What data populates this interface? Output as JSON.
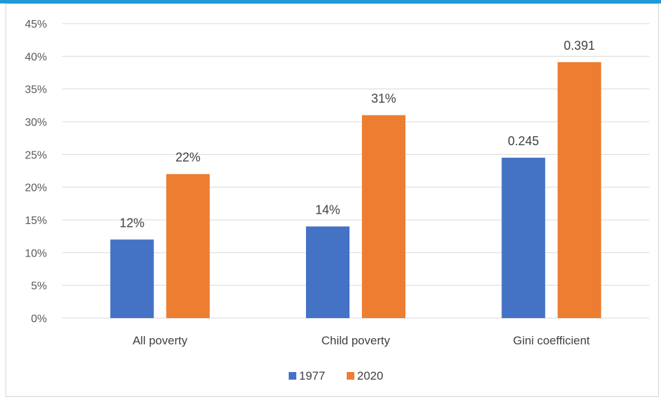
{
  "chart_data": {
    "type": "bar",
    "title": "",
    "xlabel": "",
    "ylabel": "",
    "categories": [
      "All poverty",
      "Child poverty",
      "Gini coefficient"
    ],
    "series": [
      {
        "name": "1977",
        "values": [
          0.12,
          0.14,
          0.245
        ],
        "labels": [
          "12%",
          "14%",
          "0.245"
        ],
        "color": "#4472c4"
      },
      {
        "name": "2020",
        "values": [
          0.22,
          0.31,
          0.391
        ],
        "labels": [
          "22%",
          "31%",
          "0.391"
        ],
        "color": "#ed7d31"
      }
    ],
    "ylim": [
      0,
      0.45
    ],
    "y_ticks": [
      0,
      0.05,
      0.1,
      0.15,
      0.2,
      0.25,
      0.3,
      0.35,
      0.4,
      0.45
    ],
    "y_tick_labels": [
      "0%",
      "5%",
      "10%",
      "15%",
      "20%",
      "25%",
      "30%",
      "35%",
      "40%",
      "45%"
    ],
    "grid": true,
    "legend_position": "bottom",
    "gridline_color": "#d9d9d9"
  }
}
